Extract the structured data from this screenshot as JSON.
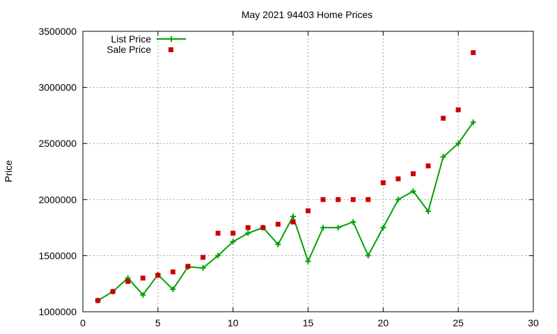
{
  "chart_data": {
    "type": "line",
    "title": "May 2021 94403 Home Prices",
    "xlabel": "",
    "ylabel": "Price",
    "xlim": [
      0,
      30
    ],
    "ylim": [
      1000000,
      3500000
    ],
    "xticks": [
      0,
      5,
      10,
      15,
      20,
      25,
      30
    ],
    "yticks": [
      1000000,
      1500000,
      2000000,
      2500000,
      3000000,
      3500000
    ],
    "grid": true,
    "legend_position": "top-left",
    "series": [
      {
        "name": "List Price",
        "style": "line-points",
        "color": "#00a000",
        "x": [
          1,
          2,
          3,
          4,
          5,
          6,
          7,
          8,
          9,
          10,
          11,
          12,
          13,
          14,
          15,
          16,
          17,
          18,
          19,
          20,
          21,
          22,
          23,
          24,
          25,
          26
        ],
        "y": [
          1100000,
          1180000,
          1300000,
          1150000,
          1330000,
          1200000,
          1400000,
          1390000,
          1500000,
          1625000,
          1700000,
          1750000,
          1600000,
          1850000,
          1450000,
          1750000,
          1750000,
          1800000,
          1500000,
          1750000,
          2000000,
          2075000,
          1895000,
          2380000,
          2500000,
          2690000
        ]
      },
      {
        "name": "Sale Price",
        "style": "points",
        "color": "#cc0000",
        "x": [
          1,
          2,
          3,
          4,
          5,
          6,
          7,
          8,
          9,
          10,
          11,
          12,
          13,
          14,
          15,
          16,
          17,
          18,
          19,
          20,
          21,
          22,
          23,
          24,
          25,
          26
        ],
        "y": [
          1100000,
          1180000,
          1270000,
          1300000,
          1325000,
          1355000,
          1405000,
          1485000,
          1700000,
          1700000,
          1750000,
          1750000,
          1780000,
          1800000,
          1900000,
          2000000,
          2000000,
          2000000,
          2000000,
          2150000,
          2185000,
          2230000,
          2300000,
          2725000,
          2800000,
          3310000
        ]
      }
    ]
  }
}
